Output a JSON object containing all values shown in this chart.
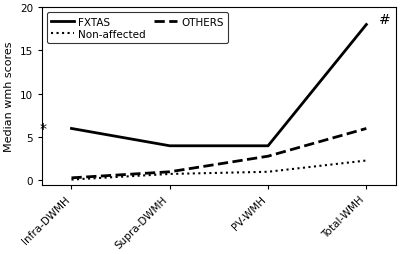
{
  "x_labels": [
    "Infra-DWMH",
    "Supra-DWMH",
    "PV-WMH",
    "Total-WMH"
  ],
  "x_positions": [
    0,
    1,
    2,
    3
  ],
  "fxtas": [
    6.0,
    4.0,
    4.0,
    18.0
  ],
  "others": [
    0.3,
    1.0,
    2.8,
    6.0
  ],
  "non_affected": [
    0.1,
    0.75,
    1.0,
    2.3
  ],
  "ylabel": "Median wmh scores",
  "ylim": [
    -0.5,
    20
  ],
  "yticks": [
    0,
    5,
    10,
    15,
    20
  ],
  "star_text": "*",
  "hash_text": "#",
  "line_color": "black",
  "bg_color": "#ffffff",
  "legend_fontsize": 7.5,
  "tick_label_fontsize": 7.5,
  "ylabel_fontsize": 8
}
